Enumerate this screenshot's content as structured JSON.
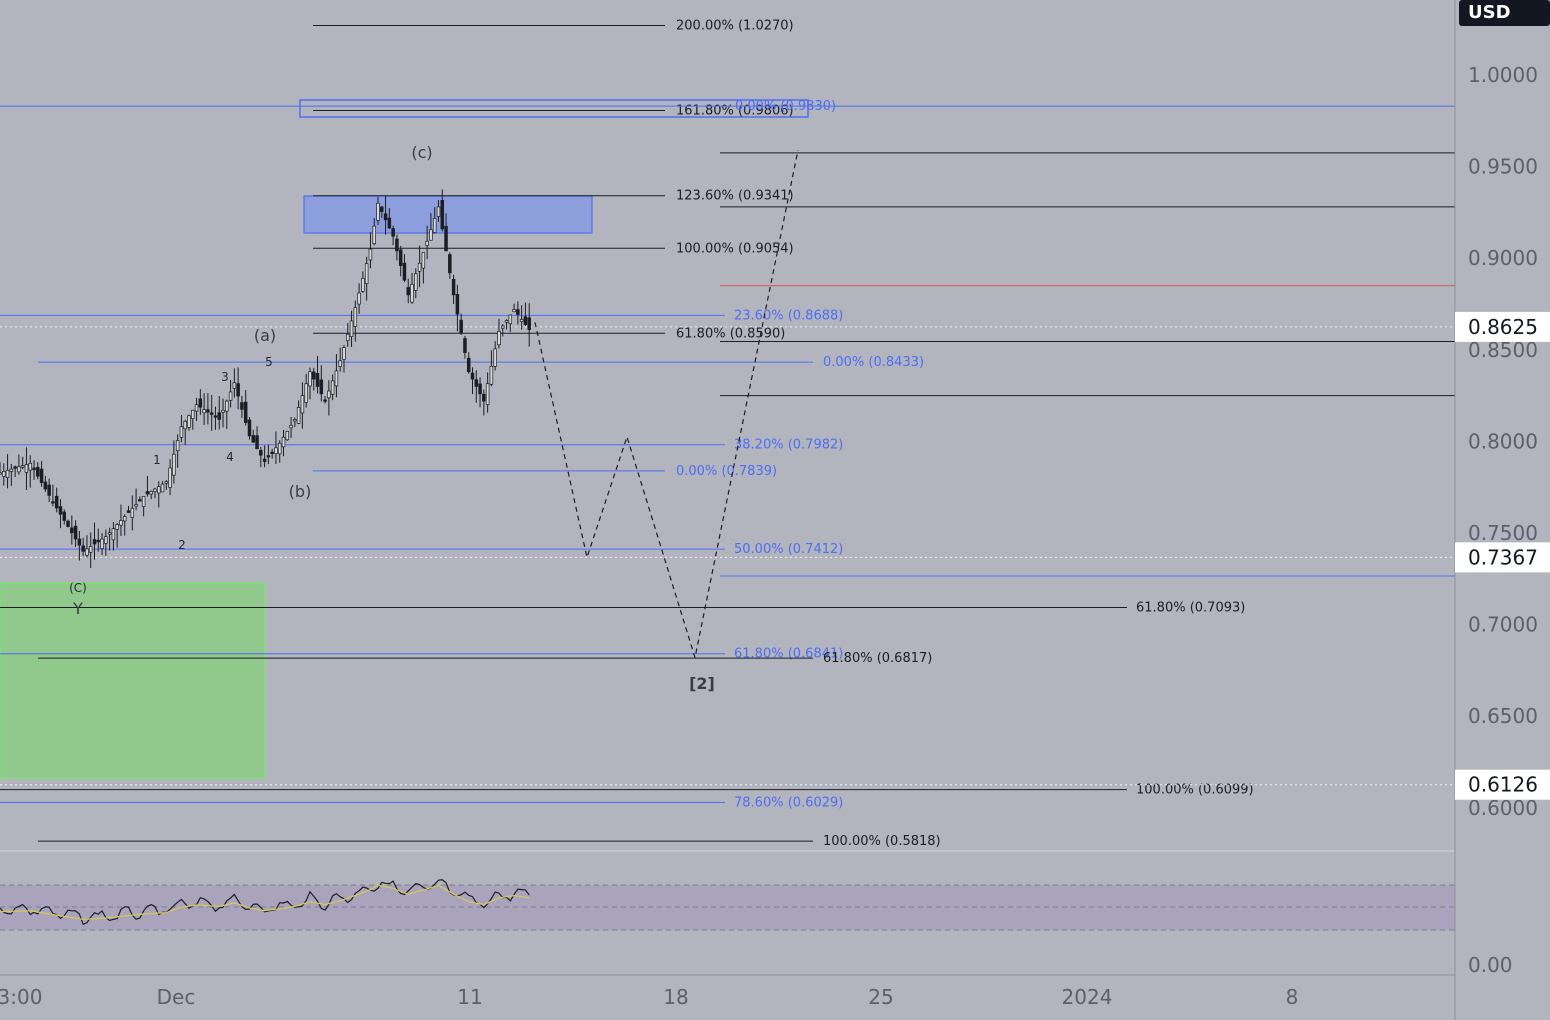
{
  "chart_data": {
    "type": "candlestick",
    "currency": "USD",
    "price_axis": {
      "ticks": [
        "1.0000",
        "0.9500",
        "0.9000",
        "0.8500",
        "0.8000",
        "0.7500",
        "0.7000",
        "0.6500",
        "0.6000"
      ],
      "range": [
        0.5818,
        1.027
      ]
    },
    "price_labels": [
      {
        "text": "0.8625",
        "value": 0.8625
      },
      {
        "text": "0.7367",
        "value": 0.7367
      },
      {
        "text": "0.6126",
        "value": 0.6126
      }
    ],
    "time_axis": {
      "ticks": [
        "3:00",
        "Dec",
        "11",
        "18",
        "25",
        "2024",
        "8"
      ]
    },
    "oscillator": {
      "tick": "0.00"
    },
    "fib_levels": [
      {
        "text": "200.00% (1.0270)",
        "value": 1.027,
        "color": "#1c1e24"
      },
      {
        "text": "161.80% (0.9806)",
        "value": 0.9806,
        "color": "#1c1e24"
      },
      {
        "text": "0.00% (0.9830)",
        "value": 0.983,
        "color": "#4f6df5"
      },
      {
        "text": "123.60% (0.9341)",
        "value": 0.9341,
        "color": "#1c1e24"
      },
      {
        "text": "100.00% (0.9054)",
        "value": 0.9054,
        "color": "#1c1e24"
      },
      {
        "text": "23.60% (0.8688)",
        "value": 0.8688,
        "color": "#4f6df5"
      },
      {
        "text": "61.80% (0.8590)",
        "value": 0.859,
        "color": "#1c1e24"
      },
      {
        "text": "0.00% (0.8433)",
        "value": 0.8433,
        "color": "#4f6df5"
      },
      {
        "text": "38.20% (0.7982)",
        "value": 0.7982,
        "color": "#4f6df5"
      },
      {
        "text": "0.00% (0.7839)",
        "value": 0.7839,
        "color": "#4f6df5"
      },
      {
        "text": "50.00% (0.7412)",
        "value": 0.7412,
        "color": "#4f6df5"
      },
      {
        "text": "61.80% (0.7093)",
        "value": 0.7093,
        "color": "#1c1e24"
      },
      {
        "text": "61.80% (0.6841)",
        "value": 0.6841,
        "color": "#4f6df5"
      },
      {
        "text": "61.80% (0.6817)",
        "value": 0.6817,
        "color": "#1c1e24"
      },
      {
        "text": "100.00% (0.6099)",
        "value": 0.6099,
        "color": "#1c1e24"
      },
      {
        "text": "78.60% (0.6029)",
        "value": 0.6029,
        "color": "#4f6df5"
      },
      {
        "text": "100.00% (0.5818)",
        "value": 0.5818,
        "color": "#1c1e24"
      }
    ],
    "wave_labels": [
      "(c)",
      "(a)",
      "(b)",
      "1",
      "2",
      "3",
      "4",
      "5",
      "(C)",
      "Y",
      "[2]"
    ],
    "projection_path": [
      0.865,
      0.7367,
      0.8025,
      0.682,
      0.959
    ],
    "colors": {
      "background": "#b2b5be",
      "blue_line": "#4f6df5",
      "black_line": "#1c1e24",
      "red_label": "#e05a5a",
      "green_zone": "#91c88b",
      "blue_zone": "#8c9fdc",
      "rsi_line": "#1c1e24",
      "rsi_ma": "#d8c85a"
    }
  }
}
